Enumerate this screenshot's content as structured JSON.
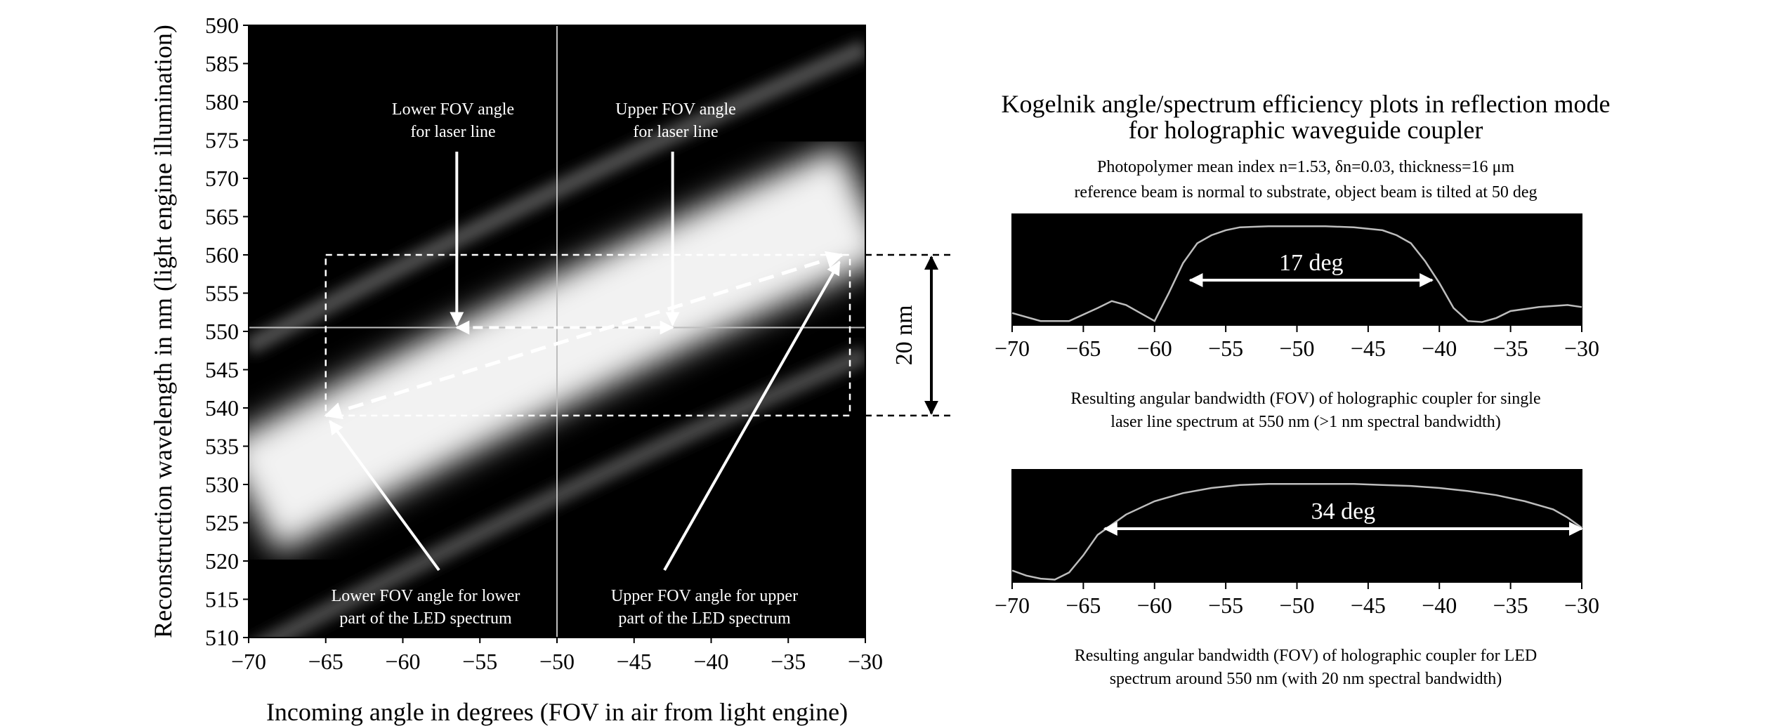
{
  "colors": {
    "plot_bg": "#000000",
    "band": "#f2f2f2",
    "curve": "#bdbdbd",
    "annotation": "#ffffff",
    "axis": "#000000"
  },
  "panel_title_line1": "Kogelnik angle/spectrum efficiency plots in reflection mode",
  "panel_title_line2": "for holographic waveguide coupler",
  "params_line1": "Photopolymer mean index n=1.53, δn=0.03, thickness=16 μm",
  "params_line2": "reference beam is normal to substrate, object beam is tilted at 50 deg",
  "chart_data": [
    {
      "type": "heatmap",
      "xlabel": "Incoming angle in degrees (FOV in air from light engine)",
      "ylabel": "Reconstruction wavelength in nm (light engine illumination)",
      "xlim": [
        -70,
        -30
      ],
      "ylim": [
        510,
        590
      ],
      "x_ticks": [
        "−70",
        "−65",
        "−60",
        "−55",
        "−50",
        "−45",
        "−40",
        "−35",
        "−30"
      ],
      "y_ticks": [
        "510",
        "515",
        "520",
        "525",
        "530",
        "535",
        "540",
        "545",
        "550",
        "555",
        "560",
        "565",
        "570",
        "575",
        "580",
        "585",
        "590"
      ],
      "crosshair": {
        "x": -50,
        "y": 550.5
      },
      "box": {
        "x": [
          -65,
          -31
        ],
        "y": [
          539,
          560
        ]
      },
      "peak_band": [
        {
          "x": -70,
          "y": 528
        },
        {
          "x": -50,
          "y": 549
        },
        {
          "x": -30,
          "y": 567
        }
      ],
      "laser_line_points": {
        "lower_x": -56.5,
        "upper_x": -42.5,
        "y": 550.5
      },
      "led_diagonal": {
        "from": {
          "x": -65,
          "y": 539
        },
        "to": {
          "x": -31.5,
          "y": 560
        }
      },
      "annotations": {
        "lower_fov_laser": [
          "Lower FOV angle",
          "for laser line"
        ],
        "upper_fov_laser": [
          "Upper FOV angle",
          "for laser line"
        ],
        "lower_fov_led": [
          "Lower FOV angle for lower",
          "part of the LED spectrum"
        ],
        "upper_fov_led": [
          "Upper FOV angle for upper",
          "part of the LED spectrum"
        ]
      },
      "bandwidth_label": "20 nm"
    },
    {
      "type": "line",
      "xlim": [
        -70,
        -30
      ],
      "x_ticks": [
        "−70",
        "−65",
        "−60",
        "−55",
        "−50",
        "−45",
        "−40",
        "−35",
        "−30"
      ],
      "x": [
        -70,
        -68,
        -66,
        -64,
        -63,
        -62,
        -61,
        -60,
        -59,
        -58,
        -57,
        -56,
        -55,
        -54,
        -52,
        -50,
        -48,
        -46,
        -44,
        -43,
        -42,
        -41,
        -40,
        -39,
        -38,
        -37,
        -36,
        -35,
        -33,
        -31,
        -30
      ],
      "y": [
        0.1,
        0.02,
        0.02,
        0.15,
        0.22,
        0.18,
        0.1,
        0.02,
        0.3,
        0.6,
        0.8,
        0.88,
        0.93,
        0.96,
        0.97,
        0.97,
        0.97,
        0.96,
        0.93,
        0.88,
        0.8,
        0.62,
        0.4,
        0.15,
        0.02,
        0.01,
        0.05,
        0.12,
        0.16,
        0.18,
        0.16
      ],
      "fwhm_range": [
        -57.5,
        -40.5
      ],
      "bandwidth_label": "17 deg",
      "caption_line1": "Resulting angular bandwidth (FOV) of holographic coupler for single",
      "caption_line2": "laser line spectrum at 550 nm (>1 nm spectral bandwidth)"
    },
    {
      "type": "line",
      "xlim": [
        -70,
        -30
      ],
      "x_ticks": [
        "−70",
        "−65",
        "−60",
        "−55",
        "−50",
        "−45",
        "−40",
        "−35",
        "−30"
      ],
      "x": [
        -70,
        -69,
        -68,
        -67,
        -66,
        -65,
        -64,
        -63,
        -62,
        -60,
        -58,
        -56,
        -54,
        -52,
        -50,
        -48,
        -46,
        -44,
        -42,
        -40,
        -38,
        -36,
        -34,
        -32,
        -31,
        -30
      ],
      "y": [
        0.1,
        0.05,
        0.02,
        0.01,
        0.08,
        0.25,
        0.45,
        0.55,
        0.65,
        0.78,
        0.86,
        0.91,
        0.94,
        0.95,
        0.95,
        0.95,
        0.95,
        0.94,
        0.93,
        0.91,
        0.88,
        0.84,
        0.78,
        0.7,
        0.62,
        0.52
      ],
      "fwhm_range": [
        -63.5,
        -30
      ],
      "bandwidth_label": "34 deg",
      "caption_line1": "Resulting angular bandwidth (FOV) of holographic coupler for LED",
      "caption_line2": "spectrum around 550 nm (with 20 nm spectral bandwidth)"
    }
  ]
}
